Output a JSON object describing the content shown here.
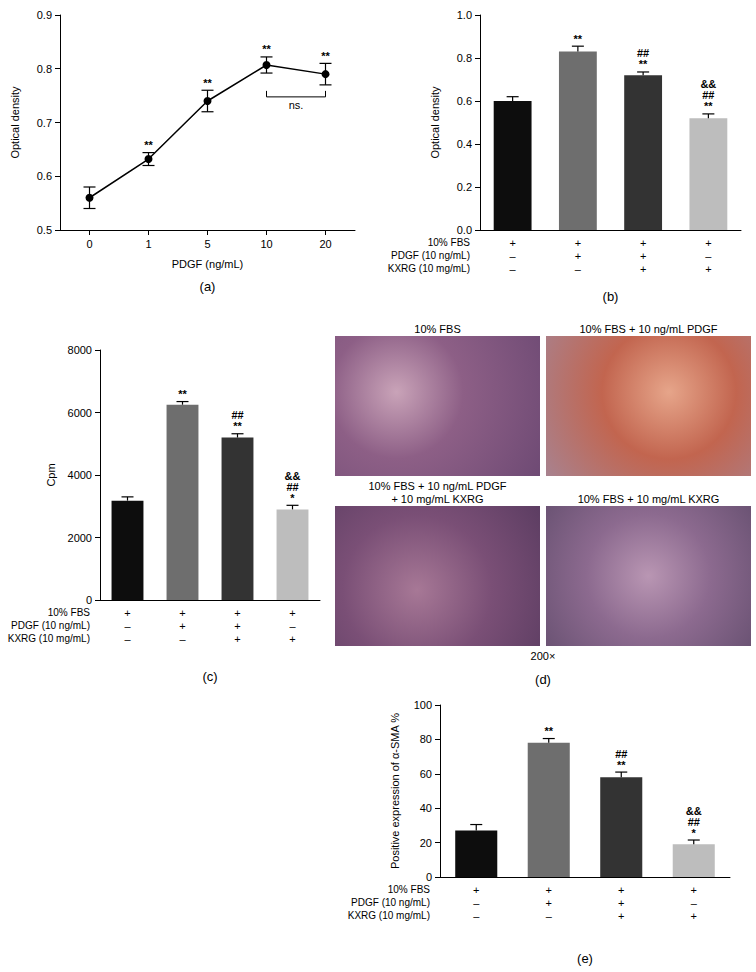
{
  "chart_data": [
    {
      "type": "line",
      "title": "(a)",
      "x_label": "PDGF (ng/mL)",
      "y_label": "Optical density",
      "categories": [
        "0",
        "1",
        "5",
        "10",
        "20"
      ],
      "values": [
        0.56,
        0.632,
        0.74,
        0.807,
        0.79
      ],
      "errors": [
        0.02,
        0.012,
        0.02,
        0.015,
        0.02
      ],
      "annotations": [
        null,
        "**",
        "**",
        "**",
        "**"
      ],
      "bracket": {
        "from": "10",
        "to": "20",
        "label": "ns."
      },
      "color": "#000000",
      "marker": "circle",
      "ylim": [
        0.5,
        0.9
      ],
      "yticks": [
        0.5,
        0.6,
        0.7,
        0.8,
        0.9
      ],
      "grid": false
    },
    {
      "type": "bar",
      "title": "(b)",
      "y_label": "Optical density",
      "conditions": [
        {
          "label": "10% FBS",
          "marks": [
            "+",
            "+",
            "+",
            "+"
          ]
        },
        {
          "label": "PDGF (10 ng/mL)",
          "marks": [
            "–",
            "+",
            "+",
            "–"
          ]
        },
        {
          "label": "KXRG (10 mg/mL)",
          "marks": [
            "–",
            "–",
            "+",
            "+"
          ]
        }
      ],
      "values": [
        0.6,
        0.83,
        0.72,
        0.52
      ],
      "errors": [
        0.02,
        0.025,
        0.015,
        0.02
      ],
      "annotations": [
        null,
        "**",
        "##\n**",
        "&&\n##\n**"
      ],
      "colors": [
        "#0d0d0d",
        "#6e6e6e",
        "#333333",
        "#bdbdbd"
      ],
      "ylim": [
        0,
        1.0
      ],
      "yticks": [
        {
          "value": 0,
          "label": "0.0"
        },
        {
          "value": 0.2,
          "label": "0.2"
        },
        {
          "value": 0.4,
          "label": "0.4"
        },
        {
          "value": 0.6,
          "label": "0.6"
        },
        {
          "value": 0.8,
          "label": "0.8"
        },
        {
          "value": 1.0,
          "label": "1.0"
        }
      ],
      "grid": false
    },
    {
      "type": "bar",
      "title": "(c)",
      "y_label": "Cpm",
      "conditions": [
        {
          "label": "10% FBS",
          "marks": [
            "+",
            "+",
            "+",
            "+"
          ]
        },
        {
          "label": "PDGF (10 ng/mL)",
          "marks": [
            "–",
            "+",
            "+",
            "–"
          ]
        },
        {
          "label": "KXRG (10 mg/mL)",
          "marks": [
            "–",
            "–",
            "+",
            "+"
          ]
        }
      ],
      "values": [
        3180,
        6250,
        5200,
        2900
      ],
      "errors": [
        120,
        100,
        120,
        130
      ],
      "annotations": [
        null,
        "**",
        "##\n**",
        "&&\n##\n*"
      ],
      "colors": [
        "#0d0d0d",
        "#6e6e6e",
        "#333333",
        "#bdbdbd"
      ],
      "ylim": [
        0,
        8000
      ],
      "yticks": [
        0,
        2000,
        4000,
        6000,
        8000
      ],
      "grid": false
    },
    {
      "type": "image",
      "title": "(d)",
      "images": [
        {
          "title": "10% FBS"
        },
        {
          "title": "10% FBS + 10 ng/mL PDGF"
        },
        {
          "title": "10% FBS + 10 ng/mL PDGF\n+ 10 mg/mL KXRG"
        },
        {
          "title": "10% FBS + 10 mg/mL KXRG"
        }
      ],
      "caption": "200×"
    },
    {
      "type": "bar",
      "title": "(e)",
      "y_label": "Positive expression of α-SMA %",
      "conditions": [
        {
          "label": "10% FBS",
          "marks": [
            "+",
            "+",
            "+",
            "+"
          ]
        },
        {
          "label": "PDGF (10 ng/mL)",
          "marks": [
            "–",
            "+",
            "+",
            "–"
          ]
        },
        {
          "label": "KXRG (10 mg/mL)",
          "marks": [
            "–",
            "–",
            "+",
            "+"
          ]
        }
      ],
      "values": [
        27,
        78,
        58,
        19
      ],
      "errors": [
        3.5,
        2.5,
        3,
        2.5
      ],
      "annotations": [
        null,
        "**",
        "##\n**",
        "&&\n##\n*"
      ],
      "colors": [
        "#0d0d0d",
        "#6e6e6e",
        "#333333",
        "#bdbdbd"
      ],
      "ylim": [
        0,
        100
      ],
      "yticks": [
        0,
        20,
        40,
        60,
        80,
        100
      ],
      "grid": false
    }
  ]
}
